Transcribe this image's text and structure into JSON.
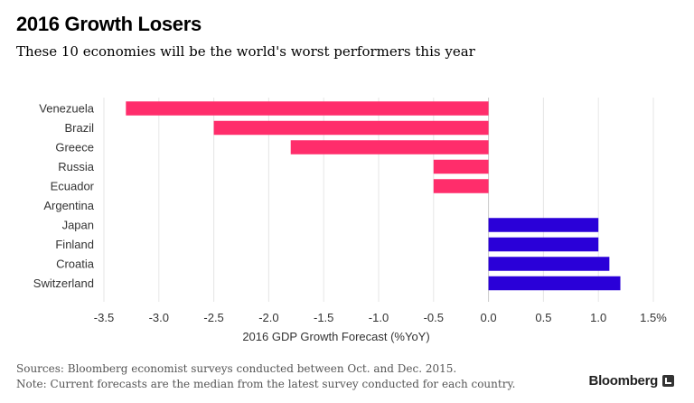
{
  "header": {
    "title": "2016 Growth Losers",
    "subtitle": "These 10 economies will be the world's worst performers this year"
  },
  "footer": {
    "sources": "Sources: Bloomberg economist surveys conducted between Oct. and Dec. 2015.",
    "note": "Note: Current forecasts are the median from the latest survey conducted for each country.",
    "logo": "Bloomberg"
  },
  "chart_data": {
    "type": "bar",
    "orientation": "horizontal",
    "title": "2016 Growth Losers",
    "subtitle": "These 10 economies will be the world's worst performers this year",
    "xlabel": "2016 GDP Growth Forecast (%YoY)",
    "ylabel": "",
    "categories": [
      "Venezuela",
      "Brazil",
      "Greece",
      "Russia",
      "Ecuador",
      "Argentina",
      "Japan",
      "Finland",
      "Croatia",
      "Switzerland"
    ],
    "values": [
      -3.3,
      -2.5,
      -1.8,
      -0.5,
      -0.5,
      0.0,
      1.0,
      1.0,
      1.1,
      1.2
    ],
    "xlim": [
      -3.5,
      1.5
    ],
    "xticks": [
      -3.5,
      -3.0,
      -2.5,
      -2.0,
      -1.5,
      -1.0,
      -0.5,
      0.0,
      0.5,
      1.0,
      1.5
    ],
    "xtick_labels": [
      "-3.5",
      "-3.0",
      "-2.5",
      "-2.0",
      "-1.5",
      "-1.0",
      "-0.5",
      "0.0",
      "0.5",
      "1.0",
      "1.5%"
    ],
    "grid": true,
    "colors": {
      "negative": "#ff2d6b",
      "positive": "#2a00d8",
      "grid": "#e6e6e6",
      "zero": "#c8c8c8"
    }
  }
}
